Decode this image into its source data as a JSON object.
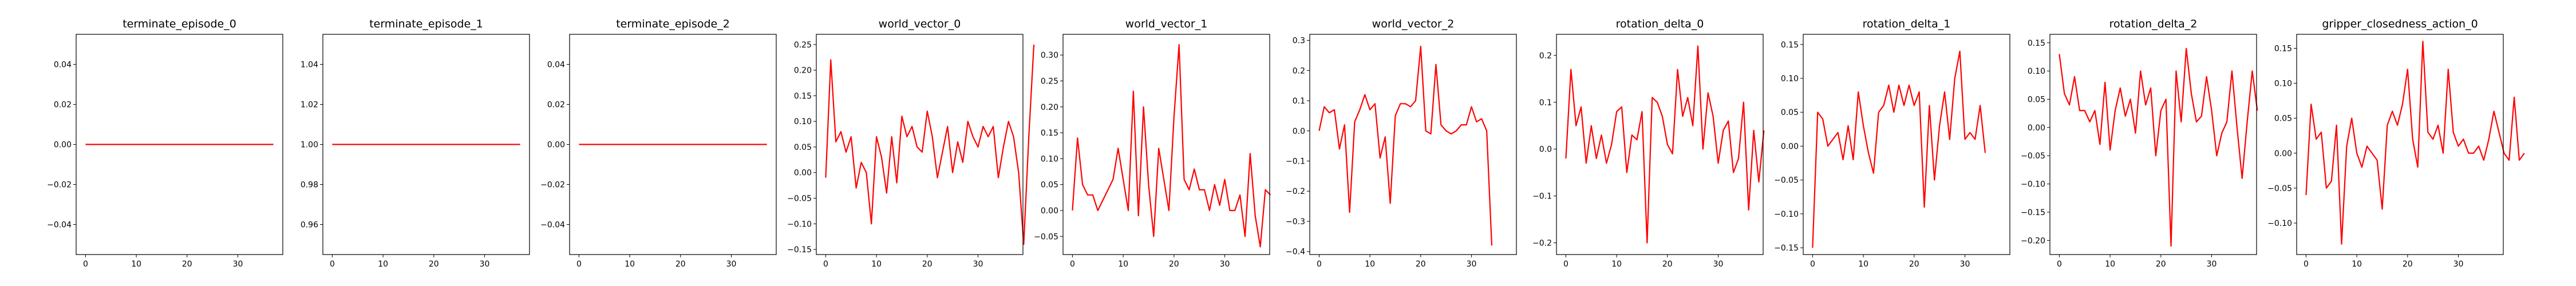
{
  "chart_data": [
    {
      "type": "line",
      "title": "terminate_episode_0",
      "xlim": [
        -1.85,
        38.85
      ],
      "ylim": [
        -0.055,
        0.055
      ],
      "xticks": [
        0,
        10,
        20,
        30
      ],
      "yticks": [
        -0.04,
        -0.02,
        0.0,
        0.02,
        0.04
      ],
      "ytick_labels": [
        "−0.04",
        "−0.02",
        "0.00",
        "0.02",
        "0.04"
      ],
      "series": [
        {
          "color": "#ff0000",
          "x": [
            0,
            37
          ],
          "y": [
            0,
            0
          ]
        }
      ]
    },
    {
      "type": "line",
      "title": "terminate_episode_1",
      "xlim": [
        -1.85,
        38.85
      ],
      "ylim": [
        0.945,
        1.055
      ],
      "xticks": [
        0,
        10,
        20,
        30
      ],
      "yticks": [
        0.96,
        0.98,
        1.0,
        1.02,
        1.04
      ],
      "ytick_labels": [
        "0.96",
        "0.98",
        "1.00",
        "1.02",
        "1.04"
      ],
      "series": [
        {
          "color": "#ff0000",
          "x": [
            0,
            37
          ],
          "y": [
            1,
            1
          ]
        }
      ]
    },
    {
      "type": "line",
      "title": "terminate_episode_2",
      "xlim": [
        -1.85,
        38.85
      ],
      "ylim": [
        -0.055,
        0.055
      ],
      "xticks": [
        0,
        10,
        20,
        30
      ],
      "yticks": [
        -0.04,
        -0.02,
        0.0,
        0.02,
        0.04
      ],
      "ytick_labels": [
        "−0.04",
        "−0.02",
        "0.00",
        "0.02",
        "0.04"
      ],
      "series": [
        {
          "color": "#ff0000",
          "x": [
            0,
            37
          ],
          "y": [
            0,
            0
          ]
        }
      ]
    },
    {
      "type": "line",
      "title": "world_vector_0",
      "xlim": [
        -1.85,
        38.85
      ],
      "ylim": [
        -0.16,
        0.27
      ],
      "xticks": [
        0,
        10,
        20,
        30
      ],
      "yticks": [
        -0.15,
        -0.1,
        -0.05,
        0.0,
        0.05,
        0.1,
        0.15,
        0.2,
        0.25
      ],
      "ytick_labels": [
        "−0.15",
        "−0.10",
        "−0.05",
        "0.00",
        "0.05",
        "0.10",
        "0.15",
        "0.20",
        "0.25"
      ],
      "series": [
        {
          "color": "#ff0000",
          "y": [
            -0.01,
            0.22,
            0.06,
            0.08,
            0.04,
            0.07,
            -0.03,
            0.02,
            0.0,
            -0.1,
            0.07,
            0.03,
            -0.04,
            0.07,
            -0.02,
            0.11,
            0.07,
            0.09,
            0.05,
            0.04,
            0.12,
            0.07,
            -0.01,
            0.04,
            0.09,
            0.0,
            0.06,
            0.02,
            0.1,
            0.07,
            0.05,
            0.09,
            0.07,
            0.09,
            -0.01,
            0.05,
            0.1,
            0.07,
            0.0,
            -0.14,
            0.07,
            0.25
          ]
        }
      ]
    },
    {
      "type": "line",
      "title": "world_vector_1",
      "xlim": [
        -1.85,
        38.85
      ],
      "ylim": [
        -0.085,
        0.34
      ],
      "xticks": [
        0,
        10,
        20,
        30
      ],
      "yticks": [
        -0.05,
        0.0,
        0.05,
        0.1,
        0.15,
        0.2,
        0.25,
        0.3
      ],
      "ytick_labels": [
        "−0.05",
        "0.00",
        "0.05",
        "0.10",
        "0.15",
        "0.20",
        "0.25",
        "0.30"
      ],
      "series": [
        {
          "color": "#ff0000",
          "y": [
            0.0,
            0.14,
            0.05,
            0.03,
            0.03,
            0.0,
            0.02,
            0.04,
            0.06,
            0.12,
            0.06,
            0.0,
            0.23,
            -0.01,
            0.2,
            0.05,
            -0.05,
            0.12,
            0.06,
            0.0,
            0.18,
            0.32,
            0.06,
            0.04,
            0.08,
            0.04,
            0.04,
            0.0,
            0.05,
            0.01,
            0.06,
            0.0,
            0.0,
            0.03,
            -0.05,
            0.11,
            -0.01,
            -0.07,
            0.04,
            0.03
          ]
        }
      ]
    },
    {
      "type": "line",
      "title": "world_vector_2",
      "xlim": [
        -1.85,
        38.85
      ],
      "ylim": [
        -0.41,
        0.32
      ],
      "xticks": [
        0,
        10,
        20,
        30
      ],
      "yticks": [
        -0.4,
        -0.3,
        -0.2,
        -0.1,
        0.0,
        0.1,
        0.2,
        0.3
      ],
      "ytick_labels": [
        "−0.4",
        "−0.3",
        "−0.2",
        "−0.1",
        "0.0",
        "0.1",
        "0.2",
        "0.3"
      ],
      "series": [
        {
          "color": "#ff0000",
          "y": [
            0.0,
            0.08,
            0.06,
            0.07,
            -0.06,
            0.02,
            -0.27,
            0.03,
            0.07,
            0.12,
            0.07,
            0.09,
            -0.09,
            -0.02,
            -0.24,
            0.05,
            0.09,
            0.09,
            0.08,
            0.1,
            0.28,
            0.0,
            -0.01,
            0.22,
            0.02,
            0.0,
            -0.01,
            0.0,
            0.02,
            0.02,
            0.08,
            0.03,
            0.04,
            0.0,
            -0.38
          ]
        }
      ]
    },
    {
      "type": "line",
      "title": "rotation_delta_0",
      "xlim": [
        -1.85,
        38.85
      ],
      "ylim": [
        -0.225,
        0.245
      ],
      "xticks": [
        0,
        10,
        20,
        30
      ],
      "yticks": [
        -0.2,
        -0.1,
        0.0,
        0.1,
        0.2
      ],
      "ytick_labels": [
        "−0.2",
        "−0.1",
        "0.0",
        "0.1",
        "0.2"
      ],
      "series": [
        {
          "color": "#ff0000",
          "y": [
            -0.02,
            0.17,
            0.05,
            0.09,
            -0.03,
            0.05,
            -0.02,
            0.03,
            -0.03,
            0.01,
            0.08,
            0.09,
            -0.05,
            0.03,
            0.02,
            0.08,
            -0.2,
            0.11,
            0.1,
            0.07,
            0.01,
            -0.01,
            0.17,
            0.07,
            0.11,
            0.05,
            0.22,
            0.0,
            0.12,
            0.07,
            -0.03,
            0.04,
            0.06,
            -0.05,
            -0.02,
            0.1,
            -0.13,
            0.04,
            -0.07,
            0.04
          ]
        }
      ]
    },
    {
      "type": "line",
      "title": "rotation_delta_1",
      "xlim": [
        -1.85,
        38.85
      ],
      "ylim": [
        -0.16,
        0.165
      ],
      "xticks": [
        0,
        10,
        20,
        30
      ],
      "yticks": [
        -0.15,
        -0.1,
        -0.05,
        0.0,
        0.05,
        0.1,
        0.15
      ],
      "ytick_labels": [
        "−0.15",
        "−0.10",
        "−0.05",
        "0.00",
        "0.05",
        "0.10",
        "0.15"
      ],
      "series": [
        {
          "color": "#ff0000",
          "y": [
            -0.15,
            0.05,
            0.04,
            0.0,
            0.01,
            0.02,
            -0.02,
            0.03,
            -0.02,
            0.08,
            0.03,
            -0.01,
            -0.04,
            0.05,
            0.06,
            0.09,
            0.05,
            0.09,
            0.06,
            0.09,
            0.06,
            0.08,
            -0.09,
            0.06,
            -0.05,
            0.03,
            0.08,
            0.01,
            0.1,
            0.14,
            0.01,
            0.02,
            0.01,
            0.06,
            -0.01
          ]
        }
      ]
    },
    {
      "type": "line",
      "title": "rotation_delta_2",
      "xlim": [
        -1.85,
        38.85
      ],
      "ylim": [
        -0.225,
        0.165
      ],
      "xticks": [
        0,
        10,
        20,
        30
      ],
      "yticks": [
        -0.2,
        -0.15,
        -0.1,
        -0.05,
        0.0,
        0.05,
        0.1,
        0.15
      ],
      "ytick_labels": [
        "−0.20",
        "−0.15",
        "−0.10",
        "−0.05",
        "0.00",
        "0.05",
        "0.10",
        "0.15"
      ],
      "series": [
        {
          "color": "#ff0000",
          "y": [
            0.13,
            0.06,
            0.04,
            0.09,
            0.03,
            0.03,
            0.01,
            0.03,
            -0.03,
            0.08,
            -0.04,
            0.03,
            0.07,
            0.02,
            0.05,
            -0.01,
            0.1,
            0.04,
            0.07,
            -0.05,
            0.03,
            0.05,
            -0.21,
            0.1,
            0.01,
            0.14,
            0.06,
            0.01,
            0.02,
            0.09,
            0.03,
            -0.05,
            -0.01,
            0.01,
            0.1,
            0.0,
            -0.09,
            0.01,
            0.1,
            0.03
          ]
        }
      ]
    },
    {
      "type": "line",
      "title": "gripper_closedness_action_0",
      "xlim": [
        -1.85,
        38.85
      ],
      "ylim": [
        -0.145,
        0.17
      ],
      "xticks": [
        0,
        10,
        20,
        30
      ],
      "yticks": [
        -0.1,
        -0.05,
        0.0,
        0.05,
        0.1,
        0.15
      ],
      "ytick_labels": [
        "−0.10",
        "−0.05",
        "0.00",
        "0.05",
        "0.10",
        "0.15"
      ],
      "series": [
        {
          "color": "#ff0000",
          "y": [
            -0.06,
            0.07,
            0.02,
            0.03,
            -0.05,
            -0.04,
            0.04,
            -0.13,
            0.01,
            0.05,
            0.0,
            -0.02,
            0.01,
            0.0,
            -0.01,
            -0.08,
            0.04,
            0.06,
            0.04,
            0.07,
            0.12,
            0.02,
            -0.02,
            0.16,
            0.03,
            0.02,
            0.04,
            0.0,
            0.12,
            0.03,
            0.01,
            0.02,
            0.0,
            0.0,
            0.01,
            -0.01,
            0.02,
            0.06,
            0.03,
            0.0,
            -0.01,
            0.08,
            -0.01,
            0.0
          ]
        }
      ]
    }
  ]
}
